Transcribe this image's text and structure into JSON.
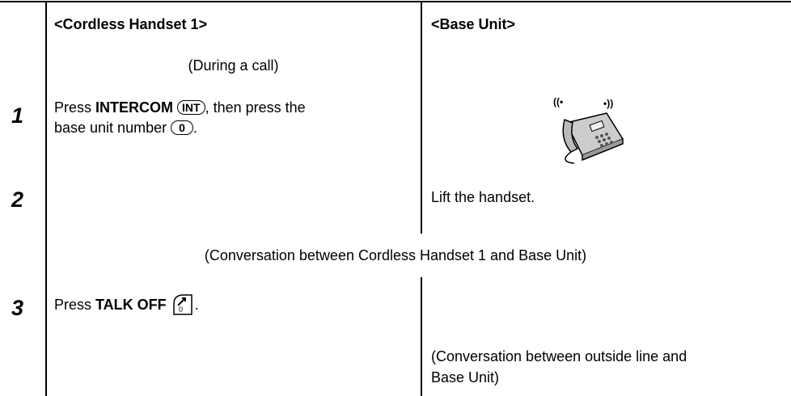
{
  "header": {
    "handset": "<Cordless Handset 1>",
    "base": "<Base Unit>"
  },
  "notes": [
    "(During a call)",
    "(Conversation between Cordless Handset 1 and Base Unit)"
  ],
  "steps": [
    {
      "number": "1",
      "line1": {
        "before": "Press ",
        "bold": "INTERCOM",
        "key": "INT",
        "after": ", then press the"
      },
      "line2": {
        "before": "base unit number ",
        "key": "0",
        "after": "."
      }
    },
    {
      "number": "2",
      "base": "Lift the handset."
    },
    {
      "number": "3",
      "line1": {
        "before": "Press ",
        "bold": "TALK OFF",
        "after": "."
      },
      "base": [
        "(Conversation between outside line and",
        "Base Unit)"
      ]
    }
  ]
}
